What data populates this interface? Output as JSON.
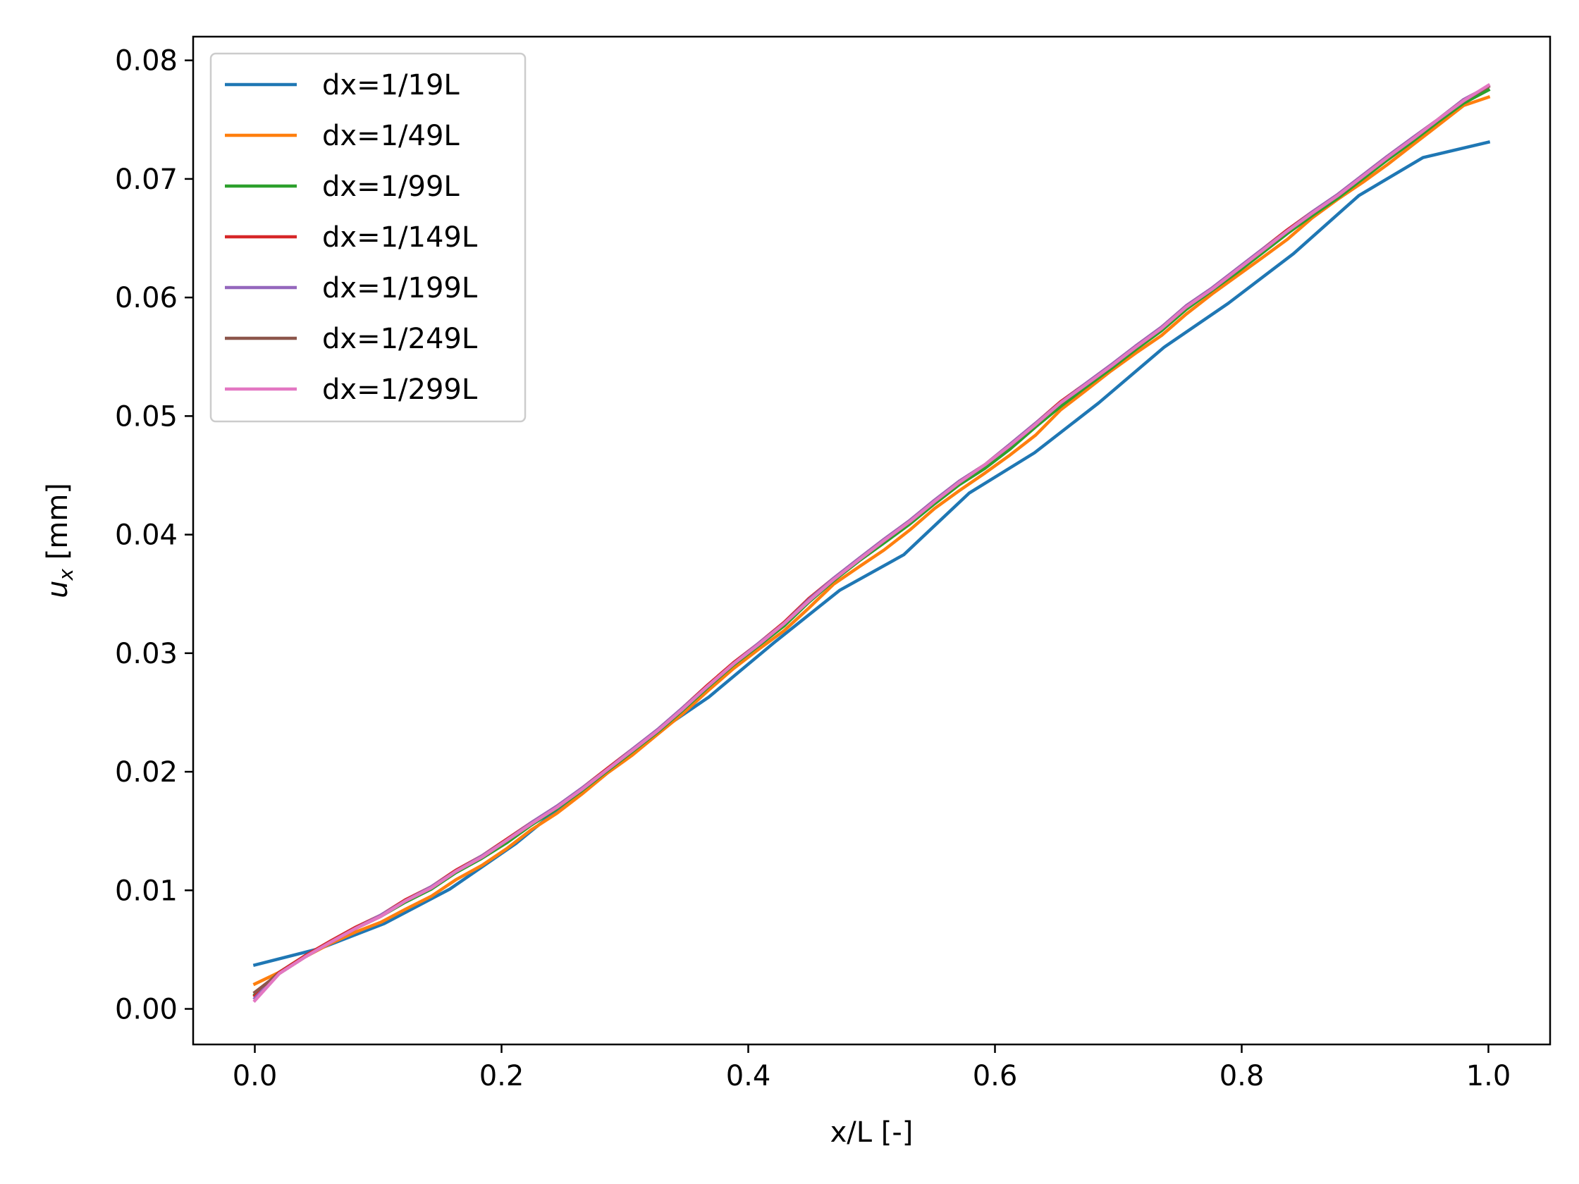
{
  "chart_data": {
    "type": "line",
    "xlabel": "x/L [-]",
    "ylabel": "u",
    "ylabel_sub": "x",
    "ylabel_unit": " [mm]",
    "xlim": [
      -0.05,
      1.05
    ],
    "ylim": [
      -0.003,
      0.082
    ],
    "x_ticks": [
      0.0,
      0.2,
      0.4,
      0.6,
      0.8,
      1.0
    ],
    "x_tick_labels": [
      "0.0",
      "0.2",
      "0.4",
      "0.6",
      "0.8",
      "1.0"
    ],
    "y_ticks": [
      0.0,
      0.01,
      0.02,
      0.03,
      0.04,
      0.05,
      0.06,
      0.07,
      0.08
    ],
    "y_tick_labels": [
      "0.00",
      "0.01",
      "0.02",
      "0.03",
      "0.04",
      "0.05",
      "0.06",
      "0.07",
      "0.08"
    ],
    "grid": false,
    "legend_position": "upper-left",
    "series": [
      {
        "name": "dx=1/19L",
        "color": "#1f77b4",
        "x": [
          0.0,
          0.053,
          0.105,
          0.158,
          0.211,
          0.263,
          0.316,
          0.368,
          0.421,
          0.474,
          0.526,
          0.579,
          0.632,
          0.684,
          0.737,
          0.789,
          0.842,
          0.895,
          0.947,
          1.0
        ],
        "y": [
          0.0037,
          0.0051,
          0.0072,
          0.0101,
          0.0139,
          0.0183,
          0.0226,
          0.0263,
          0.0309,
          0.0353,
          0.0383,
          0.0435,
          0.0469,
          0.0511,
          0.0558,
          0.0595,
          0.0637,
          0.0686,
          0.0718,
          0.0731
        ]
      },
      {
        "name": "dx=1/49L",
        "color": "#ff7f0e",
        "x": [
          0.0,
          0.02,
          0.041,
          0.061,
          0.082,
          0.102,
          0.122,
          0.143,
          0.163,
          0.184,
          0.204,
          0.224,
          0.245,
          0.265,
          0.286,
          0.306,
          0.327,
          0.347,
          0.367,
          0.388,
          0.408,
          0.429,
          0.449,
          0.469,
          0.49,
          0.51,
          0.531,
          0.551,
          0.571,
          0.592,
          0.612,
          0.633,
          0.653,
          0.673,
          0.694,
          0.714,
          0.735,
          0.755,
          0.776,
          0.796,
          0.816,
          0.837,
          0.857,
          0.878,
          0.898,
          0.918,
          0.939,
          0.959,
          0.98,
          1.0
        ],
        "y": [
          0.0021,
          0.0031,
          0.0044,
          0.0055,
          0.0065,
          0.0073,
          0.0084,
          0.0095,
          0.0109,
          0.0121,
          0.0135,
          0.0151,
          0.0165,
          0.0181,
          0.0199,
          0.0214,
          0.0232,
          0.0249,
          0.0268,
          0.0287,
          0.0303,
          0.0319,
          0.0338,
          0.0358,
          0.0373,
          0.0387,
          0.0404,
          0.0422,
          0.0437,
          0.0452,
          0.0467,
          0.0484,
          0.0505,
          0.0521,
          0.0538,
          0.0553,
          0.0568,
          0.0586,
          0.0603,
          0.0618,
          0.0633,
          0.0649,
          0.0667,
          0.0683,
          0.0697,
          0.0712,
          0.0729,
          0.0745,
          0.0762,
          0.0769
        ]
      },
      {
        "name": "dx=1/99L",
        "color": "#2ca02c",
        "x": [
          0.0,
          0.02,
          0.041,
          0.061,
          0.082,
          0.102,
          0.122,
          0.143,
          0.163,
          0.184,
          0.204,
          0.224,
          0.245,
          0.265,
          0.286,
          0.306,
          0.327,
          0.347,
          0.367,
          0.388,
          0.408,
          0.429,
          0.449,
          0.469,
          0.49,
          0.51,
          0.531,
          0.551,
          0.571,
          0.592,
          0.612,
          0.633,
          0.653,
          0.673,
          0.694,
          0.714,
          0.735,
          0.755,
          0.776,
          0.796,
          0.816,
          0.837,
          0.857,
          0.878,
          0.898,
          0.918,
          0.939,
          0.959,
          0.98,
          1.0
        ],
        "y": [
          0.0012,
          0.0031,
          0.0045,
          0.0056,
          0.0068,
          0.0078,
          0.009,
          0.0101,
          0.0115,
          0.0127,
          0.014,
          0.0155,
          0.0169,
          0.0184,
          0.0201,
          0.0217,
          0.0234,
          0.0252,
          0.0271,
          0.029,
          0.0306,
          0.0323,
          0.0343,
          0.0361,
          0.0378,
          0.0393,
          0.0409,
          0.0426,
          0.0442,
          0.0456,
          0.0472,
          0.0491,
          0.0508,
          0.0524,
          0.054,
          0.0556,
          0.0572,
          0.059,
          0.0606,
          0.0621,
          0.0637,
          0.0654,
          0.0669,
          0.0684,
          0.07,
          0.0716,
          0.0732,
          0.0748,
          0.0764,
          0.0775
        ]
      },
      {
        "name": "dx=1/149L",
        "color": "#d62728",
        "x": [
          0.0,
          0.02,
          0.041,
          0.061,
          0.082,
          0.102,
          0.122,
          0.143,
          0.163,
          0.184,
          0.204,
          0.224,
          0.245,
          0.265,
          0.286,
          0.306,
          0.327,
          0.347,
          0.367,
          0.388,
          0.408,
          0.429,
          0.449,
          0.469,
          0.49,
          0.51,
          0.531,
          0.551,
          0.571,
          0.592,
          0.612,
          0.633,
          0.653,
          0.673,
          0.694,
          0.714,
          0.735,
          0.755,
          0.776,
          0.796,
          0.816,
          0.837,
          0.857,
          0.878,
          0.898,
          0.918,
          0.939,
          0.959,
          0.98,
          1.0
        ],
        "y": [
          0.0011,
          0.0031,
          0.0045,
          0.0057,
          0.0069,
          0.0079,
          0.0092,
          0.0103,
          0.0117,
          0.0129,
          0.0143,
          0.0157,
          0.0171,
          0.0186,
          0.0203,
          0.0219,
          0.0236,
          0.0254,
          0.0273,
          0.0292,
          0.0308,
          0.0326,
          0.0346,
          0.0363,
          0.038,
          0.0396,
          0.0412,
          0.0429,
          0.0445,
          0.0459,
          0.0476,
          0.0494,
          0.0512,
          0.0527,
          0.0543,
          0.0559,
          0.0575,
          0.0593,
          0.0608,
          0.0624,
          0.064,
          0.0657,
          0.0672,
          0.0687,
          0.0703,
          0.0719,
          0.0735,
          0.075,
          0.0767,
          0.0778
        ]
      },
      {
        "name": "dx=1/199L",
        "color": "#9467bd",
        "x": [
          0.0,
          0.02,
          0.041,
          0.061,
          0.082,
          0.102,
          0.122,
          0.143,
          0.163,
          0.184,
          0.204,
          0.224,
          0.245,
          0.265,
          0.286,
          0.306,
          0.327,
          0.347,
          0.367,
          0.388,
          0.408,
          0.429,
          0.449,
          0.469,
          0.49,
          0.51,
          0.531,
          0.551,
          0.571,
          0.592,
          0.612,
          0.633,
          0.653,
          0.673,
          0.694,
          0.714,
          0.735,
          0.755,
          0.776,
          0.796,
          0.816,
          0.837,
          0.857,
          0.878,
          0.898,
          0.918,
          0.939,
          0.959,
          0.98,
          1.0
        ],
        "y": [
          0.0009,
          0.003,
          0.0044,
          0.0056,
          0.0068,
          0.0079,
          0.0091,
          0.0103,
          0.0116,
          0.0129,
          0.0142,
          0.0157,
          0.0171,
          0.0186,
          0.0202,
          0.0219,
          0.0236,
          0.0254,
          0.0272,
          0.0291,
          0.0308,
          0.0325,
          0.0345,
          0.0363,
          0.038,
          0.0396,
          0.0412,
          0.0429,
          0.0445,
          0.0459,
          0.0476,
          0.0494,
          0.0511,
          0.0527,
          0.0543,
          0.0559,
          0.0575,
          0.0593,
          0.0608,
          0.0624,
          0.064,
          0.0656,
          0.0672,
          0.0687,
          0.0703,
          0.0719,
          0.0735,
          0.075,
          0.0767,
          0.0778
        ]
      },
      {
        "name": "dx=1/249L",
        "color": "#8c564b",
        "x": [
          0.0,
          0.02,
          0.041,
          0.061,
          0.082,
          0.102,
          0.122,
          0.143,
          0.163,
          0.184,
          0.204,
          0.224,
          0.245,
          0.265,
          0.286,
          0.306,
          0.327,
          0.347,
          0.367,
          0.388,
          0.408,
          0.429,
          0.449,
          0.469,
          0.49,
          0.51,
          0.531,
          0.551,
          0.571,
          0.592,
          0.612,
          0.633,
          0.653,
          0.673,
          0.694,
          0.714,
          0.735,
          0.755,
          0.776,
          0.796,
          0.816,
          0.837,
          0.857,
          0.878,
          0.898,
          0.918,
          0.939,
          0.959,
          0.98,
          1.0
        ],
        "y": [
          0.0014,
          0.003,
          0.0044,
          0.0056,
          0.0068,
          0.0078,
          0.0091,
          0.0102,
          0.0116,
          0.0128,
          0.0142,
          0.0156,
          0.017,
          0.0185,
          0.0202,
          0.0218,
          0.0235,
          0.0253,
          0.0272,
          0.0291,
          0.0307,
          0.0325,
          0.0344,
          0.0362,
          0.0379,
          0.0395,
          0.0411,
          0.0428,
          0.0444,
          0.0459,
          0.0475,
          0.0493,
          0.0511,
          0.0526,
          0.0542,
          0.0558,
          0.0574,
          0.0592,
          0.0607,
          0.0623,
          0.0639,
          0.0656,
          0.0671,
          0.0686,
          0.0702,
          0.0718,
          0.0734,
          0.075,
          0.0766,
          0.0778
        ]
      },
      {
        "name": "dx=1/299L",
        "color": "#e377c2",
        "x": [
          0.0,
          0.02,
          0.041,
          0.061,
          0.082,
          0.102,
          0.122,
          0.143,
          0.163,
          0.184,
          0.204,
          0.224,
          0.245,
          0.265,
          0.286,
          0.306,
          0.327,
          0.347,
          0.367,
          0.388,
          0.408,
          0.429,
          0.449,
          0.469,
          0.49,
          0.51,
          0.531,
          0.551,
          0.571,
          0.592,
          0.612,
          0.633,
          0.653,
          0.673,
          0.694,
          0.714,
          0.735,
          0.755,
          0.776,
          0.796,
          0.816,
          0.837,
          0.857,
          0.878,
          0.898,
          0.918,
          0.939,
          0.959,
          0.98,
          1.0
        ],
        "y": [
          0.0007,
          0.003,
          0.0044,
          0.0056,
          0.0068,
          0.0078,
          0.0091,
          0.0102,
          0.0116,
          0.0128,
          0.0142,
          0.0156,
          0.017,
          0.0185,
          0.0202,
          0.0218,
          0.0235,
          0.0253,
          0.0272,
          0.0291,
          0.0307,
          0.0325,
          0.0344,
          0.0362,
          0.0379,
          0.0395,
          0.0411,
          0.0428,
          0.0444,
          0.0459,
          0.0475,
          0.0493,
          0.0511,
          0.0526,
          0.0542,
          0.0558,
          0.0574,
          0.0592,
          0.0607,
          0.0623,
          0.0639,
          0.0656,
          0.0671,
          0.0686,
          0.0702,
          0.0718,
          0.0734,
          0.075,
          0.0766,
          0.0779
        ]
      }
    ]
  }
}
